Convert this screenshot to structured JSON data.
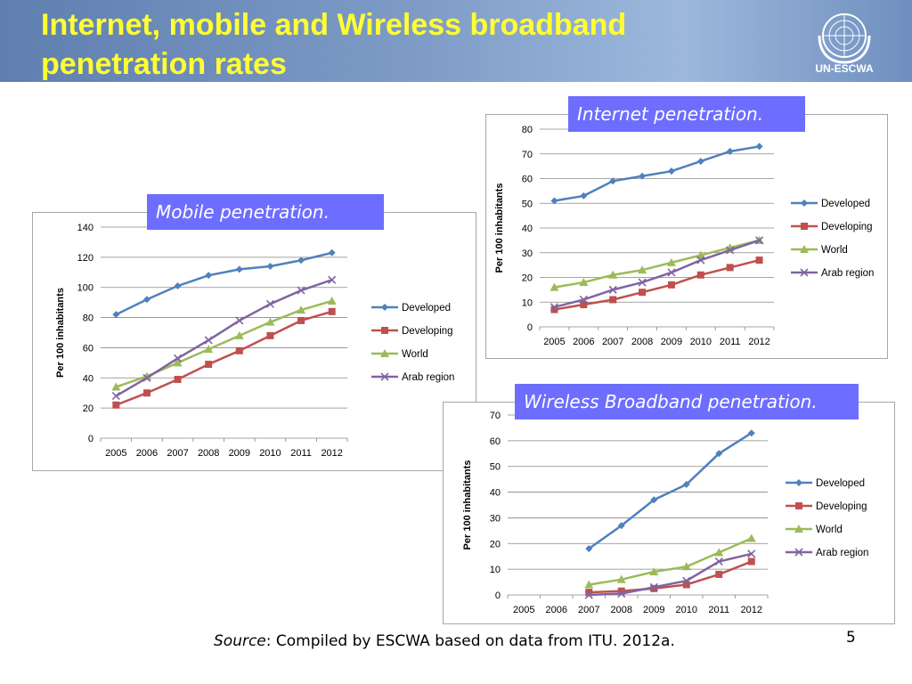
{
  "slide": {
    "title": "Internet, mobile and Wireless broadband penetration rates",
    "logo_text": "UN-ESCWA",
    "source_label": "Source",
    "source_text": ": Compiled by ESCWA based on data from ITU. 2012a.",
    "page_number": "5"
  },
  "colors": {
    "developed": "#4f81bd",
    "developing": "#c0504d",
    "world": "#9bbb59",
    "arab": "#8064a2",
    "label_box": "#6d6dff",
    "title": "#ffff33"
  },
  "chart_data": [
    {
      "id": "mobile",
      "type": "line",
      "label": "Mobile penetration.",
      "ylabel": "Per 100 inhabitants",
      "x": [
        "2005",
        "2006",
        "2007",
        "2008",
        "2009",
        "2010",
        "2011",
        "2012"
      ],
      "ylim": [
        0,
        140
      ],
      "yticks": [
        0,
        20,
        40,
        60,
        80,
        100,
        120,
        140
      ],
      "grid": true,
      "legend_position": "right",
      "series": [
        {
          "name": "Developed",
          "marker": "diamond",
          "values": [
            82,
            92,
            101,
            108,
            112,
            114,
            118,
            123
          ]
        },
        {
          "name": "Developing",
          "marker": "square",
          "values": [
            22,
            30,
            39,
            49,
            58,
            68,
            78,
            84
          ]
        },
        {
          "name": "World",
          "marker": "triangle",
          "values": [
            34,
            41,
            50,
            59,
            68,
            77,
            85,
            91
          ]
        },
        {
          "name": "Arab region",
          "marker": "x",
          "values": [
            28,
            40,
            53,
            65,
            78,
            89,
            98,
            105
          ]
        }
      ]
    },
    {
      "id": "internet",
      "type": "line",
      "label": "Internet penetration.",
      "ylabel": "Per 100 inhabitants",
      "x": [
        "2005",
        "2006",
        "2007",
        "2008",
        "2009",
        "2010",
        "2011",
        "2012"
      ],
      "ylim": [
        0,
        80
      ],
      "yticks": [
        0,
        10,
        20,
        30,
        40,
        50,
        60,
        70,
        80
      ],
      "grid": true,
      "legend_position": "right",
      "series": [
        {
          "name": "Developed",
          "marker": "diamond",
          "values": [
            51,
            53,
            59,
            61,
            63,
            67,
            71,
            73
          ]
        },
        {
          "name": "Developing",
          "marker": "square",
          "values": [
            7,
            9,
            11,
            14,
            17,
            21,
            24,
            27
          ]
        },
        {
          "name": "World",
          "marker": "triangle",
          "values": [
            16,
            18,
            21,
            23,
            26,
            29,
            32,
            35
          ]
        },
        {
          "name": "Arab region",
          "marker": "x",
          "values": [
            8,
            11,
            15,
            18,
            22,
            27,
            31,
            35
          ]
        }
      ]
    },
    {
      "id": "wireless",
      "type": "line",
      "label": "Wireless Broadband penetration.",
      "ylabel": "Per 100 inhabitants",
      "x": [
        "2005",
        "2006",
        "2007",
        "2008",
        "2009",
        "2010",
        "2011",
        "2012"
      ],
      "ylim": [
        0,
        70
      ],
      "yticks": [
        0,
        10,
        20,
        30,
        40,
        50,
        60,
        70
      ],
      "grid": true,
      "legend_position": "right",
      "series": [
        {
          "name": "Developed",
          "marker": "diamond",
          "values": [
            null,
            null,
            18,
            27,
            37,
            43,
            55,
            63
          ]
        },
        {
          "name": "Developing",
          "marker": "square",
          "values": [
            null,
            null,
            1,
            1.5,
            2.5,
            4,
            8,
            13
          ]
        },
        {
          "name": "World",
          "marker": "triangle",
          "values": [
            null,
            null,
            4,
            6,
            9,
            11,
            16.5,
            22
          ]
        },
        {
          "name": "Arab region",
          "marker": "x",
          "values": [
            null,
            null,
            0,
            0.5,
            3,
            5.5,
            13,
            16
          ]
        }
      ]
    }
  ]
}
